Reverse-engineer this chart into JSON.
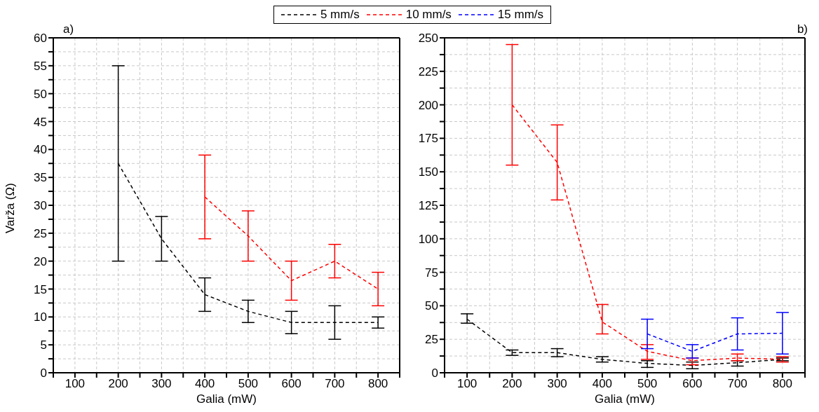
{
  "chart_data": [
    {
      "type": "line",
      "annotations": [
        "a)"
      ],
      "xlabel": "Galia (mW)",
      "ylabel": "Varža (Ω)",
      "xlim": [
        50,
        850
      ],
      "xticks": [
        {
          "value": 50,
          "label": null
        },
        100,
        {
          "value": 150,
          "label": null
        },
        200,
        {
          "value": 250,
          "label": null
        },
        300,
        {
          "value": 350,
          "label": null
        },
        400,
        {
          "value": 450,
          "label": null
        },
        500,
        {
          "value": 550,
          "label": null
        },
        600,
        {
          "value": 650,
          "label": null
        },
        700,
        {
          "value": 750,
          "label": null
        },
        800,
        {
          "value": 850,
          "label": null
        }
      ],
      "ylim": [
        0,
        60
      ],
      "yticks": [
        0,
        {
          "value": 2.5,
          "label": null
        },
        5,
        {
          "value": 7.5,
          "label": null
        },
        10,
        {
          "value": 12.5,
          "label": null
        },
        15,
        {
          "value": 17.5,
          "label": null
        },
        20,
        {
          "value": 22.5,
          "label": null
        },
        25,
        {
          "value": 27.5,
          "label": null
        },
        30,
        {
          "value": 32.5,
          "label": null
        },
        35,
        {
          "value": 37.5,
          "label": null
        },
        40,
        {
          "value": 42.5,
          "label": null
        },
        45,
        {
          "value": 47.5,
          "label": null
        },
        50,
        {
          "value": 52.5,
          "label": null
        },
        55,
        {
          "value": 57.5,
          "label": null
        },
        60
      ],
      "grid": true,
      "line_style": "dashed",
      "legend": "top",
      "series": [
        {
          "name": "5 mm/s",
          "color": "#000000",
          "x": [
            200,
            300,
            400,
            500,
            600,
            700,
            800
          ],
          "values": [
            37.5,
            24,
            14,
            11,
            9,
            9,
            9
          ],
          "errors": [
            [
              20,
              55
            ],
            [
              20,
              28
            ],
            [
              11,
              17
            ],
            [
              9,
              13
            ],
            [
              7,
              11
            ],
            [
              6,
              12
            ],
            [
              8,
              10
            ]
          ]
        },
        {
          "name": "10 mm/s",
          "color": "#ff0000",
          "x": [
            400,
            500,
            600,
            700,
            800
          ],
          "values": [
            31.5,
            24.5,
            16.5,
            20,
            15
          ],
          "errors": [
            [
              24,
              39
            ],
            [
              20,
              29
            ],
            [
              13,
              20
            ],
            [
              17,
              23
            ],
            [
              12,
              18
            ]
          ]
        }
      ]
    },
    {
      "type": "line",
      "annotations": [
        "b)"
      ],
      "xlabel": "Galia (mW)",
      "xlim": [
        50,
        850
      ],
      "xticks": [
        {
          "value": 50,
          "label": null
        },
        100,
        {
          "value": 150,
          "label": null
        },
        200,
        {
          "value": 250,
          "label": null
        },
        300,
        {
          "value": 350,
          "label": null
        },
        400,
        {
          "value": 450,
          "label": null
        },
        500,
        {
          "value": 550,
          "label": null
        },
        600,
        {
          "value": 650,
          "label": null
        },
        700,
        {
          "value": 750,
          "label": null
        },
        800,
        {
          "value": 850,
          "label": null
        }
      ],
      "ylim": [
        0,
        250
      ],
      "yticks": [
        0,
        {
          "value": 12.5,
          "label": null
        },
        25,
        {
          "value": 37.5,
          "label": null
        },
        50,
        {
          "value": 62.5,
          "label": null
        },
        75,
        {
          "value": 87.5,
          "label": null
        },
        100,
        {
          "value": 112.5,
          "label": null
        },
        125,
        {
          "value": 137.5,
          "label": null
        },
        150,
        {
          "value": 162.5,
          "label": null
        },
        175,
        {
          "value": 187.5,
          "label": null
        },
        200,
        {
          "value": 212.5,
          "label": null
        },
        225,
        {
          "value": 237.5,
          "label": null
        },
        250
      ],
      "grid": true,
      "line_style": "dashed",
      "legend": "top",
      "series": [
        {
          "color": "#000000",
          "x": [
            100,
            200,
            300,
            400,
            500,
            600,
            700,
            800
          ],
          "values": [
            40,
            15,
            15,
            10,
            7,
            5.5,
            7.5,
            10
          ],
          "errors": [
            [
              37,
              44
            ],
            [
              13,
              17
            ],
            [
              12,
              18
            ],
            [
              8,
              12
            ],
            [
              4,
              9
            ],
            [
              3,
              8
            ],
            [
              5,
              9
            ],
            [
              9,
              11
            ]
          ]
        },
        {
          "color": "#ff0000",
          "x": [
            200,
            300,
            400,
            500,
            600,
            700,
            800
          ],
          "values": [
            200,
            157,
            38,
            16,
            9,
            11,
            10
          ],
          "errors": [
            [
              155,
              245
            ],
            [
              129,
              185
            ],
            [
              29,
              51
            ],
            [
              10,
              21
            ],
            [
              6,
              11
            ],
            [
              9,
              14
            ],
            [
              8,
              12
            ]
          ]
        },
        {
          "name": "15 mm/s",
          "color": "#0000ff",
          "x": [
            500,
            600,
            700,
            800
          ],
          "values": [
            29,
            16,
            29,
            29.5
          ],
          "errors": [
            [
              18,
              40
            ],
            [
              11,
              21
            ],
            [
              17,
              41
            ],
            [
              14,
              45
            ]
          ]
        }
      ]
    }
  ]
}
